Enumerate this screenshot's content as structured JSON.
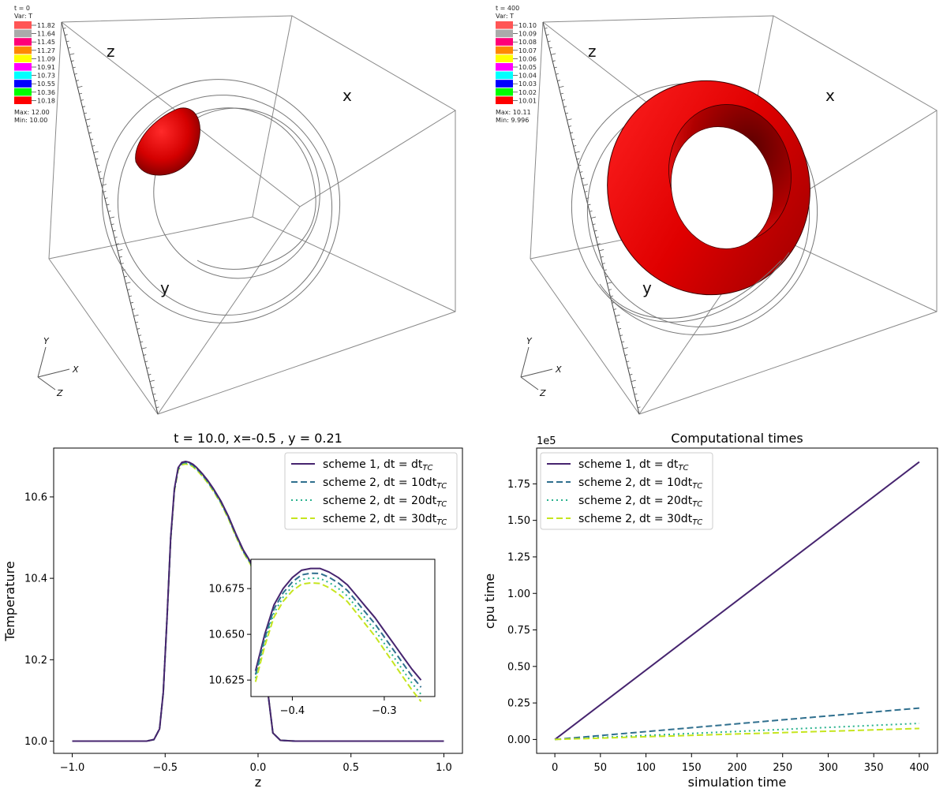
{
  "colors": {
    "legend_boxes": [
      "#ff5555",
      "#aaaaaa",
      "#ff0077",
      "#ff8800",
      "#ffff00",
      "#ff00ff",
      "#00ffff",
      "#0000ff",
      "#00ff00",
      "#ff0000"
    ],
    "surface": "#e00000",
    "scheme1": "#46246f",
    "scheme2_10": "#2f6f8e",
    "scheme2_20": "#28b28d",
    "scheme2_30": "#c6e51f"
  },
  "panels": [
    {
      "time_label": "t = 0",
      "var_label": "Var: T",
      "legend_values": [
        "11.82",
        "11.64",
        "11.45",
        "11.27",
        "11.09",
        "10.91",
        "10.73",
        "10.55",
        "10.36",
        "10.18"
      ],
      "max_label": "Max:  12.00",
      "min_label": "Min:  10.00",
      "axis_z": "z",
      "axis_x": "x",
      "axis_y": "y",
      "triad_y": "Y",
      "triad_x": "X",
      "triad_z": "Z"
    },
    {
      "time_label": "t = 400",
      "var_label": "Var: T",
      "legend_values": [
        "10.10",
        "10.09",
        "10.08",
        "10.07",
        "10.06",
        "10.05",
        "10.04",
        "10.03",
        "10.02",
        "10.01"
      ],
      "max_label": "Max:  10.11",
      "min_label": "Min:  9.996",
      "axis_z": "z",
      "axis_x": "x",
      "axis_y": "y",
      "triad_y": "Y",
      "triad_x": "X",
      "triad_z": "Z"
    }
  ],
  "chart_data": [
    {
      "type": "line",
      "title": "t = 10.0, x=-0.5 , y = 0.21",
      "xlabel": "z",
      "ylabel": "Temperature",
      "xlim": [
        -1.1,
        1.1
      ],
      "ylim": [
        9.97,
        10.72
      ],
      "xticks": [
        -1.0,
        -0.5,
        0.0,
        0.5,
        1.0
      ],
      "xtick_labels": [
        "−1.0",
        "−0.5",
        "0.0",
        "0.5",
        "1.0"
      ],
      "yticks": [
        10.0,
        10.2,
        10.4,
        10.6
      ],
      "ytick_labels": [
        "10.0",
        "10.2",
        "10.4",
        "10.6"
      ],
      "legend": "top-right",
      "x": [
        -1.0,
        -0.6,
        -0.56,
        -0.53,
        -0.51,
        -0.49,
        -0.47,
        -0.45,
        -0.43,
        -0.41,
        -0.39,
        -0.37,
        -0.35,
        -0.33,
        -0.3,
        -0.27,
        -0.24,
        -0.2,
        -0.16,
        -0.12,
        -0.08,
        -0.04,
        -0.01,
        0.02,
        0.05,
        0.08,
        0.12,
        0.2,
        1.0
      ],
      "series": [
        {
          "name": "scheme 1, dt = dt",
          "sub": "TC",
          "dash": "",
          "offset": 0.0,
          "values": [
            10.0,
            10.0,
            10.004,
            10.03,
            10.12,
            10.3,
            10.5,
            10.62,
            10.672,
            10.685,
            10.687,
            10.685,
            10.68,
            10.672,
            10.657,
            10.64,
            10.62,
            10.59,
            10.553,
            10.51,
            10.47,
            10.44,
            10.4,
            10.3,
            10.13,
            10.02,
            10.002,
            10.0,
            10.0
          ]
        },
        {
          "name": "scheme 2, dt = 10dt",
          "sub": "TC",
          "dash": "8,4",
          "offset": -0.002,
          "values": null
        },
        {
          "name": "scheme 2, dt = 20dt",
          "sub": "TC",
          "dash": "2,4",
          "offset": -0.004,
          "values": null
        },
        {
          "name": "scheme 2, dt = 30dt",
          "sub": "TC",
          "dash": "8,4",
          "offset": -0.006,
          "values": null
        }
      ],
      "inset": {
        "x": [
          -0.44,
          -0.43,
          -0.42,
          -0.41,
          -0.4,
          -0.39,
          -0.38,
          -0.37,
          -0.36,
          -0.35,
          -0.34,
          -0.33,
          -0.32,
          -0.31,
          -0.3,
          -0.29,
          -0.28,
          -0.27,
          -0.26
        ],
        "values": [
          10.63,
          10.65,
          10.666,
          10.675,
          10.681,
          10.685,
          10.686,
          10.686,
          10.684,
          10.681,
          10.677,
          10.671,
          10.665,
          10.659,
          10.652,
          10.645,
          10.638,
          10.631,
          10.625
        ],
        "offsets": [
          0.0,
          -0.002,
          -0.004,
          -0.006
        ],
        "xlim": [
          -0.445,
          -0.245
        ],
        "ylim": [
          10.616,
          10.691
        ],
        "xticks": [
          -0.4,
          -0.3
        ],
        "xtick_labels": [
          "−0.4",
          "−0.3"
        ],
        "yticks": [
          10.625,
          10.65,
          10.675
        ],
        "ytick_labels": [
          "10.625",
          "10.650",
          "10.675"
        ]
      }
    },
    {
      "type": "line",
      "title": "Computational times",
      "xlabel": "simulation time",
      "ylabel": "cpu time",
      "scale_label": "1e5",
      "xlim": [
        -20,
        420
      ],
      "ylim": [
        -0.095,
        1.995
      ],
      "xticks": [
        0,
        50,
        100,
        150,
        200,
        250,
        300,
        350,
        400
      ],
      "xtick_labels": [
        "0",
        "50",
        "100",
        "150",
        "200",
        "250",
        "300",
        "350",
        "400"
      ],
      "yticks": [
        0.0,
        0.25,
        0.5,
        0.75,
        1.0,
        1.25,
        1.5,
        1.75
      ],
      "ytick_labels": [
        "0.00",
        "0.25",
        "0.50",
        "0.75",
        "1.00",
        "1.25",
        "1.50",
        "1.75"
      ],
      "legend": "top-left",
      "x": [
        0,
        400
      ],
      "series": [
        {
          "name": "scheme 1, dt = dt",
          "sub": "TC",
          "dash": "",
          "values": [
            0.0,
            1.9
          ]
        },
        {
          "name": "scheme 2, dt = 10dt",
          "sub": "TC",
          "dash": "8,4",
          "values": [
            0.0,
            0.215
          ]
        },
        {
          "name": "scheme 2, dt = 20dt",
          "sub": "TC",
          "dash": "2,4",
          "values": [
            0.0,
            0.11
          ]
        },
        {
          "name": "scheme 2, dt = 30dt",
          "sub": "TC",
          "dash": "8,4",
          "values": [
            0.0,
            0.075
          ]
        }
      ]
    }
  ]
}
